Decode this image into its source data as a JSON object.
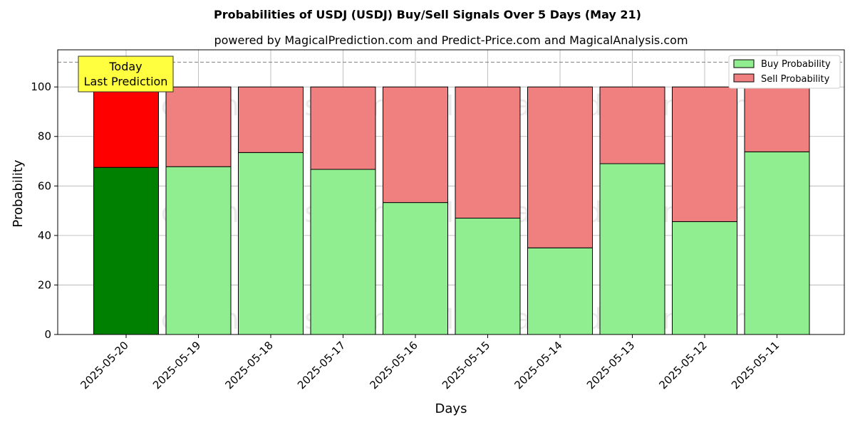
{
  "chart_data": {
    "type": "bar",
    "stacked": true,
    "title": "Probabilities of USDJ (USDJ) Buy/Sell Signals Over 5 Days (May 21)",
    "subtitle": "powered by MagicalPrediction.com and Predict-Price.com and MagicalAnalysis.com",
    "xlabel": "Days",
    "ylabel": "Probability",
    "ylim": [
      0,
      115
    ],
    "yticks": [
      0,
      20,
      40,
      60,
      80,
      100
    ],
    "grid": true,
    "legend_position": "top-right",
    "categories": [
      "2025-05-20",
      "2025-05-19",
      "2025-05-18",
      "2025-05-17",
      "2025-05-16",
      "2025-05-15",
      "2025-05-14",
      "2025-05-13",
      "2025-05-12",
      "2025-05-11"
    ],
    "series": [
      {
        "name": "Buy Probability",
        "color": "#90ee90",
        "highlight_color": "#008000",
        "values": [
          67.5,
          67.8,
          73.5,
          66.7,
          53.3,
          47.0,
          35.0,
          69.0,
          45.6,
          73.8
        ]
      },
      {
        "name": "Sell Probability",
        "color": "#f08080",
        "highlight_color": "#ff0000",
        "values": [
          32.5,
          32.2,
          26.5,
          33.3,
          46.7,
          53.0,
          65.0,
          31.0,
          54.4,
          26.2
        ]
      }
    ],
    "reference_line": {
      "y": 110,
      "style": "dashed",
      "color": "#808080"
    },
    "annotation": {
      "lines": [
        "Today",
        "Last Prediction"
      ],
      "category": "2025-05-20",
      "background": "#ffff40"
    },
    "watermarks": [
      "MagicalAnalysis.com",
      "MagicalPrediction.com"
    ]
  }
}
